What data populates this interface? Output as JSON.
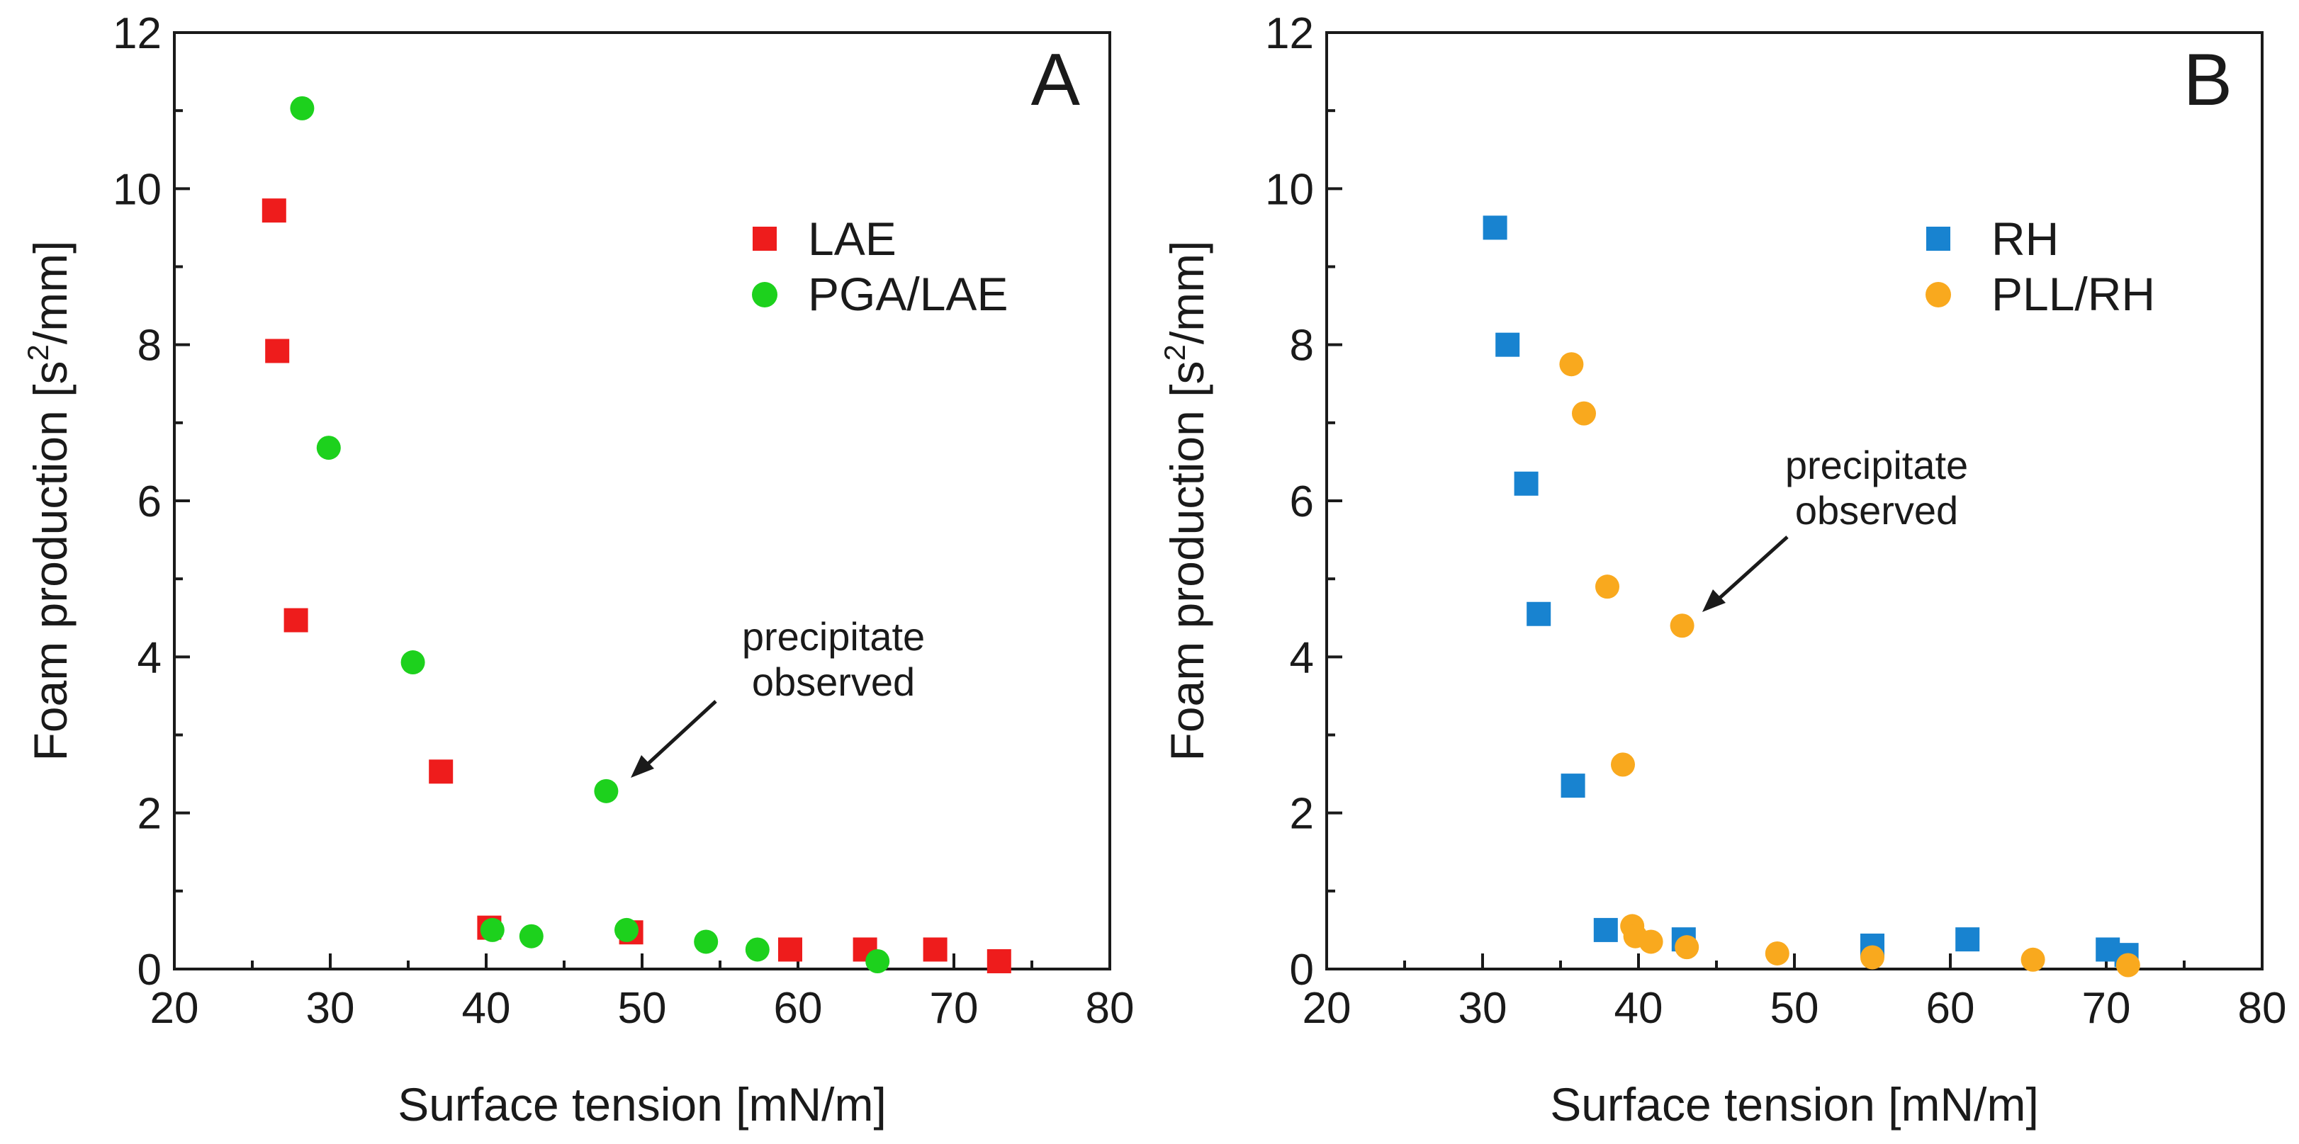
{
  "chart_data": [
    {
      "type": "scatter",
      "panel_label": "A",
      "xlabel": "Surface tension [mN/m]",
      "ylabel": {
        "prefix": "Foam production [s",
        "sup": "2",
        "suffix": "/mm]"
      },
      "xlim": [
        20,
        80
      ],
      "ylim": [
        0,
        12
      ],
      "xticks": [
        20,
        30,
        40,
        50,
        60,
        70,
        80
      ],
      "yticks": [
        0,
        2,
        4,
        6,
        8,
        10,
        12
      ],
      "legend_position": "top-right",
      "series": [
        {
          "name": "LAE",
          "marker": "square",
          "color": "#ee1c1c",
          "points": [
            [
              26.4,
              9.72
            ],
            [
              26.6,
              7.92
            ],
            [
              27.8,
              4.47
            ],
            [
              37.1,
              2.53
            ],
            [
              40.2,
              0.53
            ],
            [
              49.3,
              0.47
            ],
            [
              59.5,
              0.25
            ],
            [
              64.3,
              0.25
            ],
            [
              68.8,
              0.25
            ],
            [
              72.9,
              0.1
            ]
          ]
        },
        {
          "name": "PGA/LAE",
          "marker": "circle",
          "color": "#1dd11d",
          "points": [
            [
              28.2,
              11.03
            ],
            [
              29.9,
              6.68
            ],
            [
              35.3,
              3.93
            ],
            [
              47.7,
              2.28
            ],
            [
              40.4,
              0.5
            ],
            [
              42.9,
              0.42
            ],
            [
              49.0,
              0.5
            ],
            [
              54.1,
              0.35
            ],
            [
              57.4,
              0.25
            ],
            [
              65.1,
              0.1
            ]
          ]
        }
      ],
      "annotation": {
        "lines": [
          "precipitate",
          "observed"
        ],
        "points_to": [
          48.6,
          2.5
        ]
      }
    },
    {
      "type": "scatter",
      "panel_label": "B",
      "xlabel": "Surface tension [mN/m]",
      "ylabel": {
        "prefix": "Foam production [s",
        "sup": "2",
        "suffix": "/mm]"
      },
      "xlim": [
        20,
        80
      ],
      "ylim": [
        0,
        12
      ],
      "xticks": [
        20,
        30,
        40,
        50,
        60,
        70,
        80
      ],
      "yticks": [
        0,
        2,
        4,
        6,
        8,
        10,
        12
      ],
      "legend_position": "top-right",
      "series": [
        {
          "name": "RH",
          "marker": "square",
          "color": "#1883d0",
          "points": [
            [
              30.8,
              9.5
            ],
            [
              31.6,
              8.0
            ],
            [
              32.8,
              6.22
            ],
            [
              33.6,
              4.55
            ],
            [
              35.8,
              2.35
            ],
            [
              37.9,
              0.5
            ],
            [
              42.9,
              0.38
            ],
            [
              55.0,
              0.3
            ],
            [
              61.1,
              0.38
            ],
            [
              70.1,
              0.25
            ],
            [
              71.3,
              0.18
            ]
          ]
        },
        {
          "name": "PLL/RH",
          "marker": "circle",
          "color": "#f9a91e",
          "points": [
            [
              35.7,
              7.75
            ],
            [
              36.5,
              7.12
            ],
            [
              38.0,
              4.9
            ],
            [
              39.0,
              2.62
            ],
            [
              42.8,
              4.4
            ],
            [
              39.6,
              0.55
            ],
            [
              39.8,
              0.42
            ],
            [
              40.8,
              0.35
            ],
            [
              43.1,
              0.28
            ],
            [
              48.9,
              0.2
            ],
            [
              55.0,
              0.15
            ],
            [
              65.3,
              0.12
            ],
            [
              71.4,
              0.05
            ]
          ]
        }
      ],
      "annotation": {
        "lines": [
          "precipitate",
          "observed"
        ],
        "points_to": [
          44.0,
          4.6
        ]
      }
    }
  ]
}
